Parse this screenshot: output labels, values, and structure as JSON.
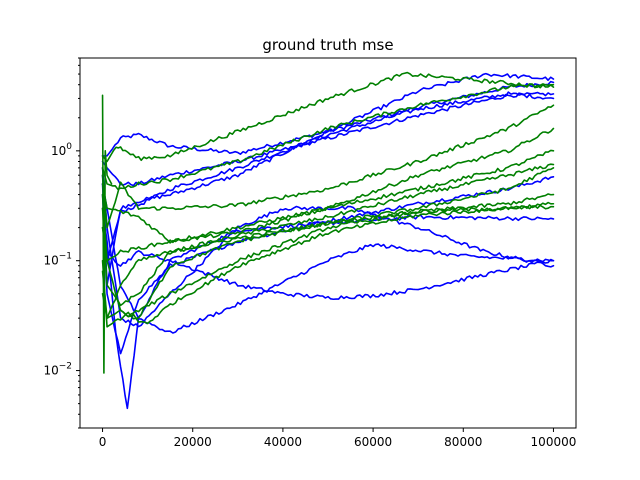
{
  "chart_data": {
    "type": "line",
    "title": "ground truth mse",
    "xlabel": "",
    "ylabel": "",
    "yscale": "log",
    "xlim": [
      -5000,
      105000
    ],
    "ylim": [
      0.003,
      7
    ],
    "x_ticks": [
      0,
      20000,
      40000,
      60000,
      80000,
      100000
    ],
    "x_tick_labels": [
      "0",
      "20000",
      "40000",
      "60000",
      "80000",
      "100000"
    ],
    "y_ticks": [
      0.01,
      0.1,
      1
    ],
    "y_tick_labels": [
      "10^-2",
      "10^-1",
      "10^0"
    ],
    "y_tick_label_parts": [
      {
        "base": "10",
        "exp": "−2"
      },
      {
        "base": "10",
        "exp": "−1"
      },
      {
        "base": "10",
        "exp": "0"
      }
    ],
    "grid": false,
    "legend": "none",
    "colors": {
      "blue": "#0000ff",
      "green": "#008000"
    },
    "series": [
      {
        "color": "blue",
        "x": [
          0,
          1000,
          4000,
          8000,
          15000,
          30000,
          50000,
          70000,
          90000,
          100000
        ],
        "y": [
          0.9,
          0.9,
          1.3,
          1.4,
          1.1,
          0.95,
          1.5,
          2.5,
          3.8,
          4.2
        ]
      },
      {
        "color": "blue",
        "x": [
          0,
          1000,
          4000,
          8000,
          15000,
          30000,
          50000,
          70000,
          90000,
          100000
        ],
        "y": [
          0.8,
          0.7,
          0.5,
          0.5,
          0.6,
          0.8,
          1.3,
          2.1,
          3.2,
          3.3
        ]
      },
      {
        "color": "blue",
        "x": [
          0,
          1000,
          4000,
          8000,
          15000,
          30000,
          50000,
          70000,
          90000,
          100000
        ],
        "y": [
          0.6,
          0.1,
          0.28,
          0.32,
          0.45,
          0.7,
          1.4,
          2.4,
          3.3,
          3.0
        ]
      },
      {
        "color": "blue",
        "x": [
          0,
          1000,
          4000,
          8000,
          15000,
          30000,
          50000,
          70000,
          85000,
          100000
        ],
        "y": [
          0.5,
          0.06,
          0.3,
          0.35,
          0.4,
          0.6,
          1.5,
          3.5,
          5.0,
          4.5
        ]
      },
      {
        "color": "blue",
        "x": [
          0,
          1000,
          4000,
          8000,
          15000,
          30000,
          50000,
          70000,
          90000,
          100000
        ],
        "y": [
          0.4,
          0.05,
          0.014,
          0.045,
          0.09,
          0.15,
          0.23,
          0.33,
          0.45,
          0.58
        ]
      },
      {
        "color": "blue",
        "x": [
          0,
          1000,
          3000,
          5500,
          8000,
          15000,
          30000,
          50000,
          70000,
          100000
        ],
        "y": [
          0.3,
          0.15,
          0.02,
          0.0045,
          0.03,
          0.1,
          0.19,
          0.22,
          0.25,
          0.24
        ]
      },
      {
        "color": "blue",
        "x": [
          0,
          1000,
          4000,
          8000,
          15000,
          30000,
          40000,
          55000,
          70000,
          85000,
          100000
        ],
        "y": [
          0.7,
          0.2,
          0.03,
          0.025,
          0.05,
          0.2,
          0.3,
          0.3,
          0.2,
          0.12,
          0.09
        ]
      },
      {
        "color": "blue",
        "x": [
          0,
          1000,
          4000,
          8000,
          15000,
          30000,
          40000,
          50000,
          60000,
          70000,
          85000,
          100000
        ],
        "y": [
          0.2,
          0.12,
          0.09,
          0.12,
          0.1,
          0.06,
          0.05,
          0.046,
          0.048,
          0.055,
          0.075,
          0.1
        ]
      },
      {
        "color": "blue",
        "x": [
          0,
          1000,
          4000,
          8000,
          15000,
          30000,
          50000,
          60000,
          80000,
          100000
        ],
        "y": [
          0.5,
          0.3,
          0.06,
          0.03,
          0.022,
          0.04,
          0.1,
          0.14,
          0.11,
          0.1
        ]
      },
      {
        "color": "green",
        "x": [
          0,
          300,
          600,
          1000,
          2000
        ],
        "y": [
          3.2,
          0.0095,
          1.0,
          0.6,
          0.5
        ]
      },
      {
        "color": "green",
        "x": [
          0,
          1000,
          3000,
          5000,
          8000,
          15000,
          30000,
          50000,
          67000,
          80000,
          100000
        ],
        "y": [
          0.9,
          0.8,
          1.1,
          1.0,
          0.85,
          0.9,
          1.5,
          3.0,
          5.0,
          4.5,
          3.8
        ]
      },
      {
        "color": "green",
        "x": [
          0,
          1000,
          4000,
          8000,
          15000,
          30000,
          50000,
          70000,
          90000,
          100000
        ],
        "y": [
          0.7,
          0.5,
          0.45,
          0.5,
          0.55,
          0.8,
          1.6,
          2.6,
          3.8,
          4.0
        ]
      },
      {
        "color": "green",
        "x": [
          0,
          1000,
          4000,
          8000,
          15000,
          30000,
          50000,
          70000,
          90000,
          100000
        ],
        "y": [
          0.6,
          0.2,
          0.5,
          0.3,
          0.3,
          0.32,
          0.45,
          0.8,
          1.6,
          2.6
        ]
      },
      {
        "color": "green",
        "x": [
          0,
          1000,
          4000,
          8000,
          15000,
          30000,
          50000,
          70000,
          90000,
          100000
        ],
        "y": [
          0.5,
          0.3,
          0.28,
          0.25,
          0.15,
          0.2,
          0.3,
          0.6,
          1.0,
          1.6
        ]
      },
      {
        "color": "green",
        "x": [
          0,
          1000,
          4000,
          8000,
          15000,
          30000,
          50000,
          70000,
          90000,
          100000
        ],
        "y": [
          0.4,
          0.1,
          0.12,
          0.13,
          0.15,
          0.18,
          0.3,
          0.45,
          0.7,
          1.0
        ]
      },
      {
        "color": "green",
        "x": [
          0,
          1000,
          4000,
          8000,
          15000,
          30000,
          50000,
          70000,
          90000,
          100000
        ],
        "y": [
          0.3,
          0.06,
          0.04,
          0.05,
          0.12,
          0.17,
          0.25,
          0.4,
          0.6,
          0.75
        ]
      },
      {
        "color": "green",
        "x": [
          0,
          1000,
          4000,
          8000,
          15000,
          30000,
          50000,
          70000,
          90000,
          100000
        ],
        "y": [
          0.2,
          0.1,
          0.035,
          0.03,
          0.09,
          0.15,
          0.22,
          0.3,
          0.45,
          0.7
        ]
      },
      {
        "color": "green",
        "x": [
          0,
          1000,
          4000,
          8000,
          15000,
          30000,
          50000,
          70000,
          90000,
          100000
        ],
        "y": [
          0.1,
          0.025,
          0.03,
          0.035,
          0.05,
          0.1,
          0.2,
          0.28,
          0.33,
          0.4
        ]
      },
      {
        "color": "green",
        "x": [
          0,
          1000,
          4000,
          8000,
          10000,
          15000,
          30000,
          50000,
          70000,
          90000,
          100000
        ],
        "y": [
          0.08,
          0.03,
          0.035,
          0.028,
          0.027,
          0.04,
          0.09,
          0.18,
          0.26,
          0.3,
          0.33
        ]
      },
      {
        "color": "green",
        "x": [
          0,
          1000,
          4000,
          8000,
          15000,
          30000,
          50000,
          70000,
          90000,
          100000
        ],
        "y": [
          0.05,
          0.03,
          0.06,
          0.1,
          0.12,
          0.16,
          0.22,
          0.28,
          0.3,
          0.31
        ]
      }
    ]
  }
}
